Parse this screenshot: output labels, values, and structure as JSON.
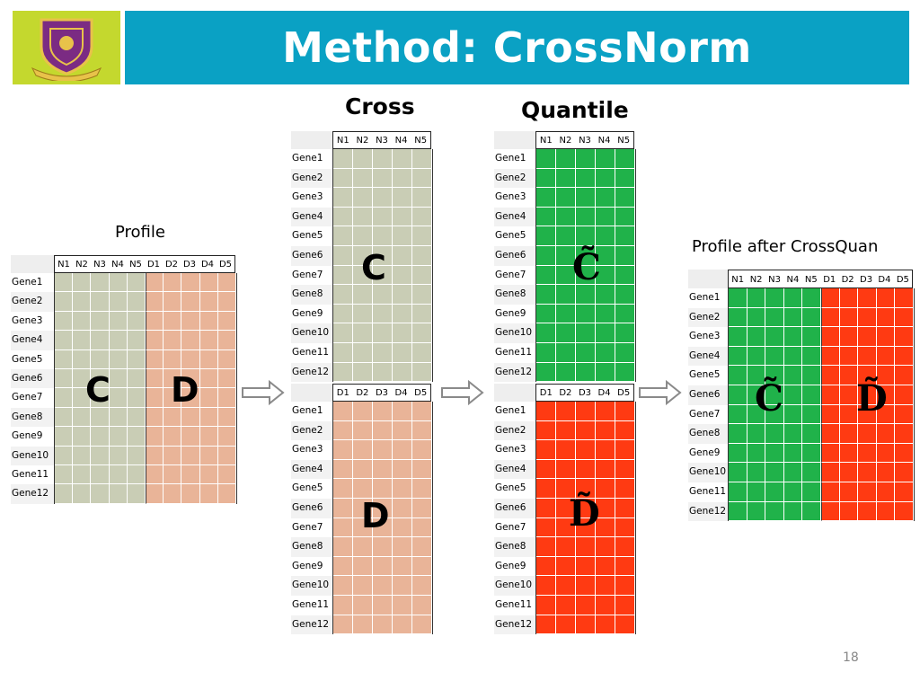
{
  "slide": {
    "title": "Method: CrossNorm",
    "page_number": "18"
  },
  "captions": {
    "profile": "Profile",
    "cross": "Cross",
    "quantile": "Quantile",
    "after": "Profile after CrossQuan"
  },
  "labels": {
    "c": "C",
    "d": "D",
    "c_tilde": "C̃",
    "d_tilde": "D̃"
  },
  "genes": [
    "Gene1",
    "Gene2",
    "Gene3",
    "Gene4",
    "Gene5",
    "Gene6",
    "Gene7",
    "Gene8",
    "Gene9",
    "Gene10",
    "Gene11",
    "Gene12"
  ],
  "normal_columns": [
    "N1",
    "N2",
    "N3",
    "N4",
    "N5"
  ],
  "disease_columns": [
    "D1",
    "D2",
    "D3",
    "D4",
    "D5"
  ],
  "colors": {
    "header_blue": "#0aa1c4",
    "logo_green": "#c4d82e",
    "normal_raw": "#c9cdb5",
    "disease_raw": "#e9b498",
    "normal_quantile": "#20b24a",
    "disease_quantile": "#ff3a12"
  },
  "icons": {
    "logo": "university-crest-icon",
    "arrow": "hollow-right-arrow-icon"
  }
}
